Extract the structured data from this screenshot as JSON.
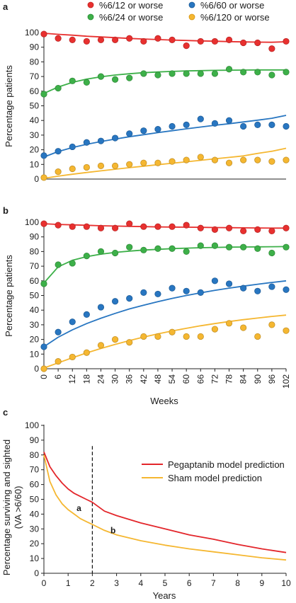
{
  "chart_data": [
    {
      "type": "scatter",
      "panel_label": "a",
      "legend": [
        "%6/12 or worse",
        "%6/60 or worse",
        "%6/24 or worse",
        "%6/120 or worse"
      ],
      "ylabel": "Percentage patients",
      "xlabel": "",
      "xlim": [
        0,
        102
      ],
      "ylim": [
        0,
        100
      ],
      "yticks": [
        0,
        10,
        20,
        30,
        40,
        50,
        60,
        70,
        80,
        90,
        100
      ],
      "series": [
        {
          "name": "%6/12 or worse",
          "color": "#e8302f",
          "x": [
            0,
            6,
            12,
            18,
            24,
            30,
            36,
            42,
            48,
            54,
            60,
            66,
            72,
            78,
            84,
            90,
            96,
            102
          ],
          "y": [
            99,
            96,
            95,
            94,
            95,
            95,
            96,
            94,
            96,
            95,
            91,
            94,
            94,
            95,
            93,
            93,
            89,
            94
          ],
          "fit_y": [
            99.5,
            98.8,
            98.2,
            97.5,
            97.0,
            96.5,
            96.0,
            95.6,
            95.2,
            94.9,
            94.6,
            94.3,
            94.1,
            93.8,
            93.6,
            93.5,
            93.4,
            93.7
          ]
        },
        {
          "name": "%6/24 or worse",
          "color": "#3db049",
          "x": [
            0,
            6,
            12,
            18,
            24,
            30,
            36,
            42,
            48,
            54,
            60,
            66,
            72,
            78,
            84,
            90,
            96,
            102
          ],
          "y": [
            58,
            62,
            67,
            66,
            70,
            68,
            69,
            72,
            71,
            72,
            72,
            72,
            72,
            75,
            73,
            73,
            71,
            73
          ],
          "fit_y": [
            58.5,
            62.8,
            66.0,
            68.2,
            69.8,
            71.0,
            71.9,
            72.6,
            73.1,
            73.5,
            73.8,
            74.0,
            74.2,
            74.3,
            74.4,
            74.5,
            74.5,
            74.5
          ]
        },
        {
          "name": "%6/60 or worse",
          "color": "#2876c1",
          "x": [
            0,
            6,
            12,
            18,
            24,
            30,
            36,
            42,
            48,
            54,
            60,
            66,
            72,
            78,
            84,
            90,
            96,
            102
          ],
          "y": [
            16,
            19,
            22,
            25,
            26,
            28,
            31,
            33,
            34,
            36,
            37,
            41,
            38,
            40,
            36,
            37,
            37,
            36
          ],
          "fit_y": [
            15.0,
            18.8,
            21.5,
            23.7,
            25.6,
            27.3,
            28.9,
            30.3,
            31.7,
            33.0,
            34.3,
            35.5,
            36.7,
            37.8,
            39.0,
            40.2,
            41.5,
            43.5
          ]
        },
        {
          "name": "%6/120 or worse",
          "color": "#f5b731",
          "x": [
            0,
            6,
            12,
            18,
            24,
            30,
            36,
            42,
            48,
            54,
            60,
            66,
            72,
            78,
            84,
            90,
            96,
            102
          ],
          "y": [
            1,
            5,
            7,
            8,
            9,
            9,
            10,
            11,
            11,
            12,
            13,
            15,
            13,
            11,
            13,
            13,
            12,
            13
          ],
          "fit_y": [
            0.5,
            2.0,
            3.3,
            4.5,
            5.6,
            6.7,
            7.8,
            8.8,
            9.8,
            10.8,
            11.8,
            12.8,
            13.8,
            14.8,
            15.8,
            17.5,
            19.0,
            21.0
          ]
        }
      ]
    },
    {
      "type": "scatter",
      "panel_label": "b",
      "ylabel": "Percentage patients",
      "xlabel": "Weeks",
      "xlim": [
        0,
        102
      ],
      "ylim": [
        0,
        100
      ],
      "xticks": [
        0,
        6,
        12,
        18,
        24,
        30,
        36,
        42,
        48,
        54,
        60,
        66,
        72,
        78,
        84,
        90,
        96,
        102
      ],
      "yticks": [
        0,
        10,
        20,
        30,
        40,
        50,
        60,
        70,
        80,
        90,
        100
      ],
      "series": [
        {
          "name": "%6/12 or worse",
          "color": "#e8302f",
          "x": [
            0,
            6,
            12,
            18,
            24,
            30,
            36,
            42,
            48,
            54,
            60,
            66,
            72,
            78,
            84,
            90,
            96,
            102
          ],
          "y": [
            99,
            98,
            97,
            97,
            96,
            96,
            99,
            97,
            97,
            97,
            98,
            96,
            95,
            96,
            94,
            95,
            94,
            96
          ],
          "fit_y": [
            99.0,
            98.5,
            98.2,
            97.9,
            97.6,
            97.4,
            97.2,
            97.0,
            96.8,
            96.7,
            96.6,
            96.5,
            96.4,
            96.3,
            96.2,
            96.1,
            96.0,
            96.0
          ]
        },
        {
          "name": "%6/24 or worse",
          "color": "#3db049",
          "x": [
            0,
            6,
            12,
            18,
            24,
            30,
            36,
            42,
            48,
            54,
            60,
            66,
            72,
            78,
            84,
            90,
            96,
            102
          ],
          "y": [
            58,
            71,
            72,
            77,
            80,
            79,
            83,
            81,
            82,
            82,
            80,
            84,
            84,
            83,
            83,
            82,
            79,
            83
          ],
          "fit_y": [
            58.5,
            69.5,
            74.0,
            76.5,
            78.2,
            79.4,
            80.3,
            81.0,
            81.5,
            82.0,
            82.3,
            82.6,
            82.8,
            83.0,
            83.1,
            83.2,
            83.3,
            83.4
          ]
        },
        {
          "name": "%6/60 or worse",
          "color": "#2876c1",
          "x": [
            0,
            6,
            12,
            18,
            24,
            30,
            36,
            42,
            48,
            54,
            60,
            66,
            72,
            78,
            84,
            90,
            96,
            102
          ],
          "y": [
            15,
            25,
            32,
            37,
            42,
            46,
            48,
            52,
            51,
            55,
            53,
            52,
            60,
            58,
            55,
            53,
            56,
            54
          ],
          "fit_y": [
            15.0,
            21.5,
            26.5,
            30.8,
            34.5,
            37.8,
            40.8,
            43.4,
            45.8,
            48.0,
            50.0,
            51.8,
            53.5,
            55.0,
            56.4,
            57.7,
            58.9,
            60.0
          ]
        },
        {
          "name": "%6/120 or worse",
          "color": "#f5b731",
          "x": [
            0,
            6,
            12,
            18,
            24,
            30,
            36,
            42,
            48,
            54,
            60,
            66,
            72,
            78,
            84,
            90,
            96,
            102
          ],
          "y": [
            0,
            5,
            8,
            11,
            16,
            20,
            18,
            22,
            22,
            25,
            22,
            22,
            27,
            31,
            28,
            22,
            30,
            26
          ],
          "fit_y": [
            0.5,
            4.0,
            7.5,
            10.8,
            13.8,
            16.6,
            19.2,
            21.6,
            23.8,
            25.8,
            27.6,
            29.3,
            30.8,
            32.2,
            33.5,
            34.6,
            35.7,
            36.6
          ]
        }
      ]
    },
    {
      "type": "line",
      "panel_label": "c",
      "ylabel_lines": [
        "Percentage surviving and sighted",
        "(VA >6/60)"
      ],
      "xlabel": "Years",
      "xlim": [
        0,
        10
      ],
      "ylim": [
        0,
        100
      ],
      "xticks": [
        0,
        1,
        2,
        3,
        4,
        5,
        6,
        7,
        8,
        9,
        10
      ],
      "yticks": [
        0,
        10,
        20,
        30,
        40,
        50,
        60,
        70,
        80,
        90,
        100
      ],
      "vline_x": 2,
      "annotations": [
        {
          "text": "a",
          "x": 1.35,
          "y": 42
        },
        {
          "text": "b",
          "x": 2.75,
          "y": 27
        }
      ],
      "series": [
        {
          "name": "Pegaptanib model prediction",
          "color": "#e3262b",
          "x": [
            0,
            0.25,
            0.5,
            0.75,
            1,
            1.25,
            1.5,
            1.75,
            2,
            2.5,
            3,
            4,
            5,
            6,
            7,
            8,
            9,
            10
          ],
          "y": [
            82,
            72,
            66,
            61,
            57,
            54,
            52,
            50,
            48,
            42,
            39,
            34,
            30,
            26,
            23,
            19.5,
            16.5,
            14
          ]
        },
        {
          "name": "Sham model prediction",
          "color": "#f5b731",
          "x": [
            0,
            0.25,
            0.5,
            0.75,
            1,
            1.25,
            1.5,
            1.75,
            2,
            2.5,
            3,
            4,
            5,
            6,
            7,
            8,
            9,
            10
          ],
          "y": [
            80,
            62,
            53,
            47,
            43,
            40,
            37,
            35,
            33,
            29,
            26,
            22,
            19,
            16.5,
            14.5,
            12.5,
            10.5,
            9
          ]
        }
      ]
    }
  ]
}
